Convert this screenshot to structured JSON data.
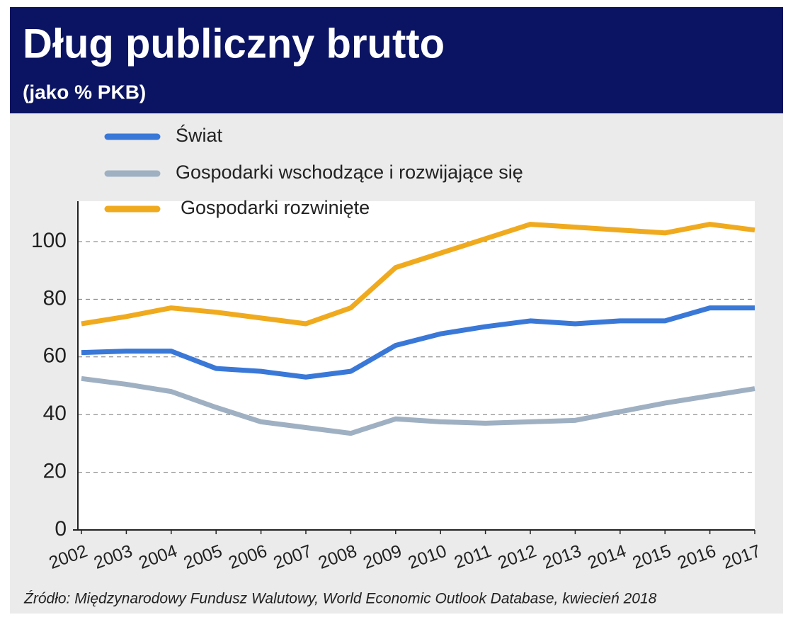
{
  "chart_data": {
    "type": "line",
    "title": "Dług publiczny brutto",
    "subtitle": "(jako % PKB)",
    "source": "Źródło: Międzynarodowy Fundusz Walutowy, World Economic Outlook Database, kwiecień 2018",
    "x": [
      2002,
      2003,
      2004,
      2005,
      2006,
      2007,
      2008,
      2009,
      2010,
      2011,
      2012,
      2013,
      2014,
      2015,
      2016,
      2017
    ],
    "xlim": [
      2002,
      2017
    ],
    "xticks": [
      2002,
      2003,
      2004,
      2005,
      2006,
      2007,
      2008,
      2009,
      2010,
      2011,
      2012,
      2013,
      2014,
      2015,
      2016,
      2017
    ],
    "ylim": [
      0,
      114
    ],
    "yticks": [
      0,
      20,
      40,
      60,
      80,
      100
    ],
    "grid": true,
    "legend": "top",
    "series": [
      {
        "name": "Świat",
        "color": "#3a78d8",
        "values": [
          61.5,
          62,
          62,
          56,
          55,
          53,
          55,
          64,
          68,
          70.5,
          72.5,
          71.5,
          72.5,
          72.5,
          77,
          77
        ]
      },
      {
        "name": "Gospodarki wschodzące i rozwijające się",
        "color": "#9fb0c3",
        "values": [
          52.5,
          50.5,
          48,
          42.5,
          37.5,
          35.5,
          33.5,
          38.5,
          37.5,
          37,
          37.5,
          38,
          41,
          44,
          46.5,
          49
        ]
      },
      {
        "name": "Gospodarki rozwinięte",
        "color": "#f0aa1e",
        "values": [
          71.5,
          74,
          77,
          75.5,
          73.5,
          71.5,
          77,
          91,
          96,
          101,
          106,
          105,
          104,
          103,
          106,
          104
        ]
      }
    ]
  }
}
